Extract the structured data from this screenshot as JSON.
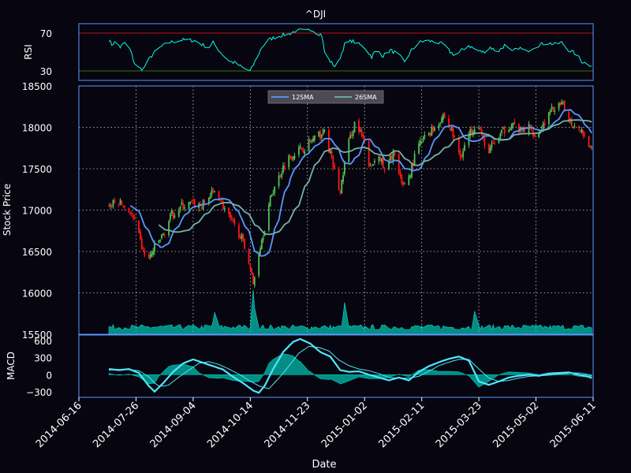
{
  "chart_data": {
    "type": "candlestick",
    "title": "^DJI",
    "xlabel": "Date",
    "background_color": "#07050f",
    "spine_color": "#5998ff",
    "x_ticks": [
      "2014-06-16",
      "2014-07-26",
      "2014-09-04",
      "2014-10-14",
      "2014-11-23",
      "2015-01-02",
      "2015-02-11",
      "2015-03-23",
      "2015-05-02",
      "2015-06-11"
    ],
    "x_range": [
      "2014-06-16",
      "2015-06-11"
    ],
    "rsi": {
      "ylabel": "RSI",
      "ylim": [
        20,
        80
      ],
      "yticks": [
        "70",
        "30"
      ],
      "overbought": 70,
      "oversold": 30,
      "overbought_color": "#b5121b",
      "oversold_color": "#386d13",
      "line_color": "#00ffe8",
      "anchors": [
        [
          "2014-07-07",
          63
        ],
        [
          "2014-07-09",
          58
        ],
        [
          "2014-07-12",
          61
        ],
        [
          "2014-07-15",
          55
        ],
        [
          "2014-07-18",
          60
        ],
        [
          "2014-07-22",
          52
        ],
        [
          "2014-07-25",
          38
        ],
        [
          "2014-07-28",
          33
        ],
        [
          "2014-07-31",
          32
        ],
        [
          "2014-08-03",
          40
        ],
        [
          "2014-08-07",
          48
        ],
        [
          "2014-08-12",
          55
        ],
        [
          "2014-08-18",
          60
        ],
        [
          "2014-08-24",
          62
        ],
        [
          "2014-08-30",
          63
        ],
        [
          "2014-09-05",
          62
        ],
        [
          "2014-09-10",
          58
        ],
        [
          "2014-09-15",
          55
        ],
        [
          "2014-09-18",
          60
        ],
        [
          "2014-09-22",
          52
        ],
        [
          "2014-09-26",
          45
        ],
        [
          "2014-09-30",
          40
        ],
        [
          "2014-10-04",
          38
        ],
        [
          "2014-10-09",
          33
        ],
        [
          "2014-10-14",
          30
        ],
        [
          "2014-10-18",
          42
        ],
        [
          "2014-10-22",
          55
        ],
        [
          "2014-10-27",
          63
        ],
        [
          "2014-11-01",
          66
        ],
        [
          "2014-11-06",
          68
        ],
        [
          "2014-11-10",
          69
        ],
        [
          "2014-11-14",
          72
        ],
        [
          "2014-11-18",
          73
        ],
        [
          "2014-11-22",
          72
        ],
        [
          "2014-11-26",
          74
        ],
        [
          "2014-11-30",
          70
        ],
        [
          "2014-12-03",
          68
        ],
        [
          "2014-12-05",
          50
        ],
        [
          "2014-12-08",
          42
        ],
        [
          "2014-12-12",
          35
        ],
        [
          "2014-12-15",
          40
        ],
        [
          "2014-12-19",
          58
        ],
        [
          "2014-12-24",
          62
        ],
        [
          "2014-12-29",
          58
        ],
        [
          "2015-01-02",
          55
        ],
        [
          "2015-01-07",
          45
        ],
        [
          "2015-01-10",
          52
        ],
        [
          "2015-01-15",
          46
        ],
        [
          "2015-01-20",
          52
        ],
        [
          "2015-01-25",
          48
        ],
        [
          "2015-01-30",
          40
        ],
        [
          "2015-02-04",
          52
        ],
        [
          "2015-02-09",
          60
        ],
        [
          "2015-02-14",
          62
        ],
        [
          "2015-02-20",
          61
        ],
        [
          "2015-02-26",
          58
        ],
        [
          "2015-03-03",
          50
        ],
        [
          "2015-03-07",
          46
        ],
        [
          "2015-03-11",
          52
        ],
        [
          "2015-03-16",
          57
        ],
        [
          "2015-03-21",
          52
        ],
        [
          "2015-03-26",
          50
        ],
        [
          "2015-03-31",
          55
        ],
        [
          "2015-04-05",
          50
        ],
        [
          "2015-04-10",
          57
        ],
        [
          "2015-04-15",
          50
        ],
        [
          "2015-04-20",
          55
        ],
        [
          "2015-04-25",
          50
        ],
        [
          "2015-04-30",
          55
        ],
        [
          "2015-05-05",
          58
        ],
        [
          "2015-05-10",
          60
        ],
        [
          "2015-05-15",
          58
        ],
        [
          "2015-05-20",
          60
        ],
        [
          "2015-05-25",
          52
        ],
        [
          "2015-05-30",
          48
        ],
        [
          "2015-06-03",
          40
        ],
        [
          "2015-06-08",
          37
        ],
        [
          "2015-06-10",
          36
        ]
      ]
    },
    "price": {
      "ylabel": "Stock Price",
      "ylim": [
        15500,
        18500
      ],
      "yticks": [
        "15500",
        "16000",
        "16500",
        "17000",
        "17500",
        "18000",
        "18500"
      ],
      "grid": true,
      "up_color": "#53c156",
      "down_color": "#ff1717",
      "legend_placement": "upper-center",
      "series": [
        {
          "name": "12SMA",
          "color": "#5998ff",
          "linewidth": 1.5
        },
        {
          "name": "26SMA",
          "color": "#74b3a4",
          "linewidth": 1.5
        }
      ],
      "close_anchors": [
        [
          "2014-07-07",
          17050
        ],
        [
          "2014-07-14",
          17100
        ],
        [
          "2014-07-21",
          17000
        ],
        [
          "2014-07-25",
          16850
        ],
        [
          "2014-07-31",
          16500
        ],
        [
          "2014-08-04",
          16400
        ],
        [
          "2014-08-08",
          16550
        ],
        [
          "2014-08-14",
          16700
        ],
        [
          "2014-08-20",
          16950
        ],
        [
          "2014-08-27",
          17050
        ],
        [
          "2014-09-03",
          17070
        ],
        [
          "2014-09-10",
          17050
        ],
        [
          "2014-09-16",
          17180
        ],
        [
          "2014-09-20",
          17250
        ],
        [
          "2014-09-25",
          17050
        ],
        [
          "2014-10-01",
          16850
        ],
        [
          "2014-10-07",
          16700
        ],
        [
          "2014-10-13",
          16400
        ],
        [
          "2014-10-16",
          16100
        ],
        [
          "2014-10-20",
          16500
        ],
        [
          "2014-10-24",
          16800
        ],
        [
          "2014-10-29",
          17200
        ],
        [
          "2014-11-03",
          17400
        ],
        [
          "2014-11-08",
          17600
        ],
        [
          "2014-11-14",
          17700
        ],
        [
          "2014-11-20",
          17750
        ],
        [
          "2014-11-27",
          17850
        ],
        [
          "2014-12-05",
          17950
        ],
        [
          "2014-12-10",
          17600
        ],
        [
          "2014-12-16",
          17200
        ],
        [
          "2014-12-20",
          17700
        ],
        [
          "2014-12-26",
          18050
        ],
        [
          "2015-01-01",
          17850
        ],
        [
          "2015-01-06",
          17500
        ],
        [
          "2015-01-12",
          17700
        ],
        [
          "2015-01-16",
          17450
        ],
        [
          "2015-01-22",
          17700
        ],
        [
          "2015-01-28",
          17300
        ],
        [
          "2015-02-02",
          17400
        ],
        [
          "2015-02-08",
          17750
        ],
        [
          "2015-02-14",
          17900
        ],
        [
          "2015-02-20",
          18000
        ],
        [
          "2015-02-26",
          18150
        ],
        [
          "2015-03-04",
          17950
        ],
        [
          "2015-03-10",
          17650
        ],
        [
          "2015-03-16",
          17900
        ],
        [
          "2015-03-22",
          18100
        ],
        [
          "2015-03-28",
          17700
        ],
        [
          "2015-04-03",
          17800
        ],
        [
          "2015-04-09",
          17950
        ],
        [
          "2015-04-15",
          18050
        ],
        [
          "2015-04-21",
          17950
        ],
        [
          "2015-04-27",
          18000
        ],
        [
          "2015-05-03",
          17900
        ],
        [
          "2015-05-09",
          18100
        ],
        [
          "2015-05-15",
          18250
        ],
        [
          "2015-05-21",
          18250
        ],
        [
          "2015-05-27",
          18050
        ],
        [
          "2015-06-02",
          18000
        ],
        [
          "2015-06-08",
          17800
        ],
        [
          "2015-06-10",
          17750
        ]
      ]
    },
    "volume": {
      "fill_color": "#00ffe8",
      "baseline_height_units": 80,
      "spikes": [
        [
          "2014-09-19",
          200
        ],
        [
          "2014-10-16",
          400
        ],
        [
          "2014-12-19",
          290
        ],
        [
          "2015-03-20",
          210
        ]
      ]
    },
    "macd": {
      "ylabel": "MACD",
      "ylim": [
        -400,
        700
      ],
      "yticks": [
        "600",
        "300",
        "0",
        "−300"
      ],
      "macd_color": "#4ee6fd",
      "signal_color": "#4ee6fd",
      "histogram_color": "#00ffe8",
      "macd_anchors": [
        [
          "2014-07-07",
          100
        ],
        [
          "2014-07-14",
          80
        ],
        [
          "2014-07-21",
          100
        ],
        [
          "2014-07-28",
          30
        ],
        [
          "2014-08-04",
          -200
        ],
        [
          "2014-08-08",
          -300
        ],
        [
          "2014-08-14",
          -150
        ],
        [
          "2014-08-21",
          50
        ],
        [
          "2014-08-28",
          200
        ],
        [
          "2014-09-04",
          270
        ],
        [
          "2014-09-11",
          210
        ],
        [
          "2014-09-18",
          150
        ],
        [
          "2014-09-25",
          90
        ],
        [
          "2014-10-02",
          -40
        ],
        [
          "2014-10-09",
          -150
        ],
        [
          "2014-10-16",
          -280
        ],
        [
          "2014-10-20",
          -320
        ],
        [
          "2014-10-24",
          -200
        ],
        [
          "2014-10-30",
          100
        ],
        [
          "2014-11-06",
          400
        ],
        [
          "2014-11-13",
          580
        ],
        [
          "2014-11-18",
          630
        ],
        [
          "2014-11-25",
          550
        ],
        [
          "2014-12-02",
          400
        ],
        [
          "2014-12-09",
          320
        ],
        [
          "2014-12-16",
          80
        ],
        [
          "2014-12-22",
          50
        ],
        [
          "2014-12-29",
          60
        ],
        [
          "2015-01-05",
          0
        ],
        [
          "2015-01-12",
          -50
        ],
        [
          "2015-01-19",
          -100
        ],
        [
          "2015-01-26",
          -50
        ],
        [
          "2015-02-02",
          -100
        ],
        [
          "2015-02-09",
          50
        ],
        [
          "2015-02-16",
          150
        ],
        [
          "2015-02-23",
          220
        ],
        [
          "2015-03-02",
          280
        ],
        [
          "2015-03-09",
          320
        ],
        [
          "2015-03-16",
          250
        ],
        [
          "2015-03-23",
          -120
        ],
        [
          "2015-03-30",
          -180
        ],
        [
          "2015-04-06",
          -120
        ],
        [
          "2015-04-13",
          -50
        ],
        [
          "2015-04-20",
          -20
        ],
        [
          "2015-04-27",
          0
        ],
        [
          "2015-05-04",
          -20
        ],
        [
          "2015-05-11",
          20
        ],
        [
          "2015-05-18",
          30
        ],
        [
          "2015-05-25",
          40
        ],
        [
          "2015-06-01",
          0
        ],
        [
          "2015-06-08",
          -40
        ],
        [
          "2015-06-10",
          -60
        ]
      ],
      "signal_anchors": [
        [
          "2014-07-07",
          80
        ],
        [
          "2014-07-14",
          90
        ],
        [
          "2014-07-21",
          90
        ],
        [
          "2014-07-28",
          70
        ],
        [
          "2014-08-04",
          -40
        ],
        [
          "2014-08-10",
          -200
        ],
        [
          "2014-08-17",
          -200
        ],
        [
          "2014-08-24",
          -60
        ],
        [
          "2014-09-01",
          80
        ],
        [
          "2014-09-08",
          200
        ],
        [
          "2014-09-15",
          230
        ],
        [
          "2014-09-22",
          180
        ],
        [
          "2014-09-29",
          100
        ],
        [
          "2014-10-06",
          10
        ],
        [
          "2014-10-13",
          -100
        ],
        [
          "2014-10-20",
          -200
        ],
        [
          "2014-10-27",
          -250
        ],
        [
          "2014-11-03",
          -60
        ],
        [
          "2014-11-10",
          150
        ],
        [
          "2014-11-17",
          380
        ],
        [
          "2014-11-24",
          500
        ],
        [
          "2014-12-01",
          480
        ],
        [
          "2014-12-08",
          420
        ],
        [
          "2014-12-15",
          260
        ],
        [
          "2014-12-22",
          160
        ],
        [
          "2014-12-29",
          100
        ],
        [
          "2015-01-05",
          70
        ],
        [
          "2015-01-12",
          20
        ],
        [
          "2015-01-19",
          -50
        ],
        [
          "2015-01-26",
          -60
        ],
        [
          "2015-02-02",
          -60
        ],
        [
          "2015-02-09",
          -30
        ],
        [
          "2015-02-16",
          60
        ],
        [
          "2015-02-23",
          160
        ],
        [
          "2015-03-02",
          220
        ],
        [
          "2015-03-09",
          270
        ],
        [
          "2015-03-16",
          270
        ],
        [
          "2015-03-23",
          100
        ],
        [
          "2015-03-30",
          -60
        ],
        [
          "2015-04-06",
          -120
        ],
        [
          "2015-04-13",
          -100
        ],
        [
          "2015-04-20",
          -60
        ],
        [
          "2015-04-27",
          -30
        ],
        [
          "2015-05-04",
          -20
        ],
        [
          "2015-05-11",
          -10
        ],
        [
          "2015-05-18",
          10
        ],
        [
          "2015-05-25",
          30
        ],
        [
          "2015-06-01",
          30
        ],
        [
          "2015-06-08",
          0
        ],
        [
          "2015-06-10",
          -20
        ]
      ]
    }
  }
}
